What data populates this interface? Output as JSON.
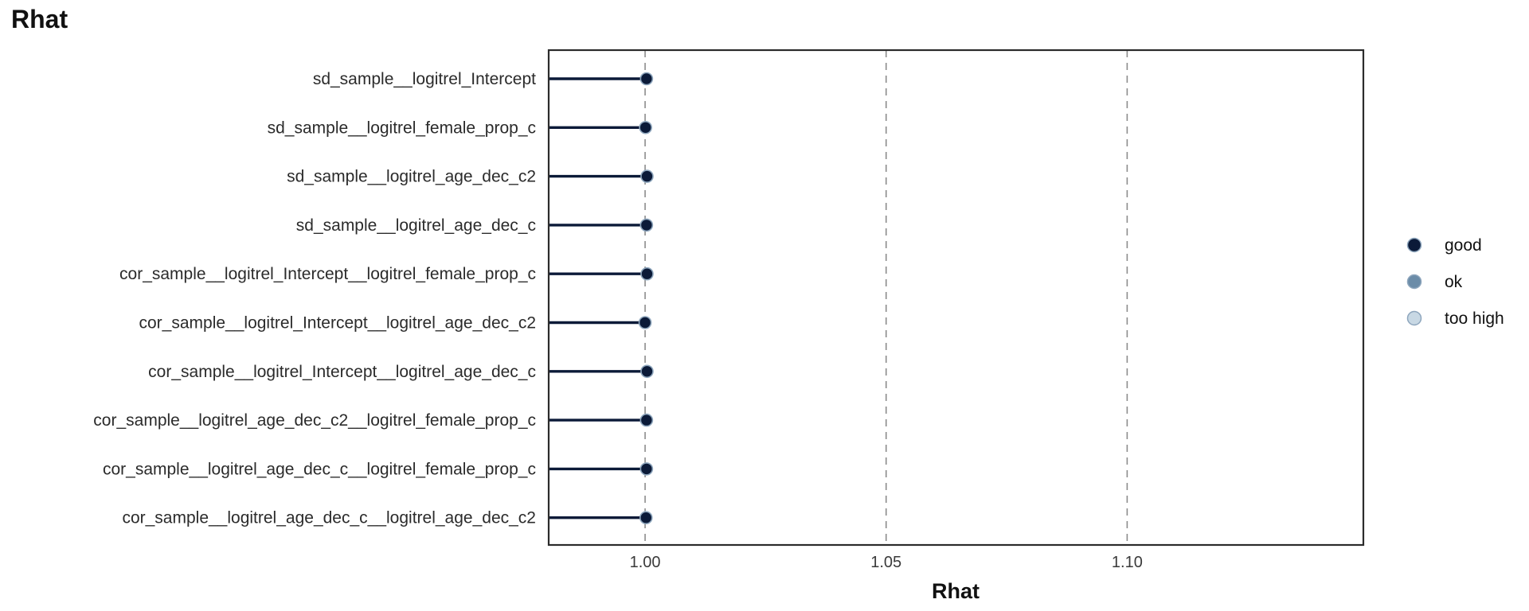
{
  "chart_data": {
    "type": "scatter",
    "title": "Rhat",
    "xlabel": "Rhat",
    "ylabel": "",
    "xlim": [
      0.98,
      1.149
    ],
    "x_ticks": [
      1.0,
      1.05,
      1.1
    ],
    "x_tick_labels": [
      "1.00",
      "1.05",
      "1.10"
    ],
    "reference_lines": [
      1.0,
      1.05,
      1.1
    ],
    "grid": false,
    "legend_position": "right",
    "parameters": [
      "sd_sample__logitrel_Intercept",
      "sd_sample__logitrel_female_prop_c",
      "sd_sample__logitrel_age_dec_c2",
      "sd_sample__logitrel_age_dec_c",
      "cor_sample__logitrel_Intercept__logitrel_female_prop_c",
      "cor_sample__logitrel_Intercept__logitrel_age_dec_c2",
      "cor_sample__logitrel_Intercept__logitrel_age_dec_c",
      "cor_sample__logitrel_age_dec_c2__logitrel_female_prop_c",
      "cor_sample__logitrel_age_dec_c__logitrel_female_prop_c",
      "cor_sample__logitrel_age_dec_c__logitrel_age_dec_c2"
    ],
    "values": [
      1.0003,
      1.0001,
      1.0004,
      1.0003,
      1.0004,
      1.0,
      1.0004,
      1.0003,
      1.0003,
      1.0002
    ],
    "categories": [
      "good",
      "good",
      "good",
      "good",
      "good",
      "good",
      "good",
      "good",
      "good",
      "good"
    ],
    "legend": [
      {
        "label": "good",
        "color": "#0b1a38"
      },
      {
        "label": "ok",
        "color": "#6b8ca8"
      },
      {
        "label": "too high",
        "color": "#c8d8e4"
      }
    ]
  }
}
